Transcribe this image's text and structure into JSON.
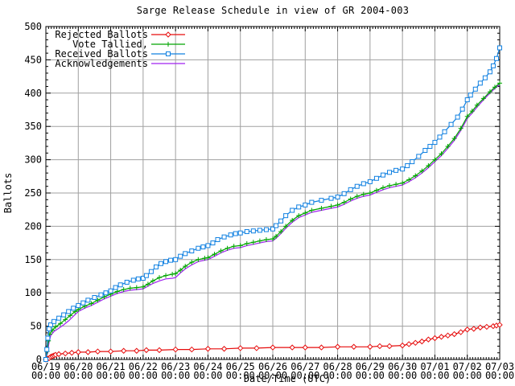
{
  "title": "Sarge Release Schedule in view of GR 2004-003",
  "y_axis_label": "Ballots",
  "x_axis_label": "Date/Time (UTC)",
  "colors": {
    "rejected": "#e60c0c",
    "tallied": "#00a400",
    "received": "#1080e1",
    "acknowledgements": "#a020f0",
    "grid": "#a0a0a0",
    "axis": "#000000",
    "background": "#ffffff"
  },
  "chart_data": {
    "type": "line",
    "title": "Sarge Release Schedule in view of GR 2004-003",
    "xlabel": "Date/Time (UTC)",
    "ylabel": "Ballots",
    "ylim": [
      0,
      500
    ],
    "y_tick_values": [
      0,
      50,
      100,
      150,
      200,
      250,
      300,
      350,
      400,
      450,
      500
    ],
    "y_minor_step": 10,
    "x_days": 14,
    "x_minor_per_day": 12,
    "x_tick_dates": [
      "06/19",
      "06/20",
      "06/21",
      "06/22",
      "06/23",
      "06/24",
      "06/25",
      "06/26",
      "06/27",
      "06/28",
      "06/29",
      "06/30",
      "07/01",
      "07/02",
      "07/03"
    ],
    "x_tick_sub": "00:00",
    "grid": true,
    "legend_position": "top-left",
    "series": [
      {
        "name": "Rejected Ballots",
        "slug": "rejected-ballots",
        "color": "#e60c0c",
        "marker": "diamond",
        "points": [
          [
            0,
            0
          ],
          [
            0.05,
            1
          ],
          [
            0.1,
            2
          ],
          [
            0.15,
            4
          ],
          [
            0.2,
            5
          ],
          [
            0.25,
            6
          ],
          [
            0.3,
            7
          ],
          [
            0.4,
            8
          ],
          [
            0.6,
            9
          ],
          [
            0.8,
            10
          ],
          [
            1.0,
            11
          ],
          [
            1.3,
            11
          ],
          [
            1.6,
            12
          ],
          [
            2.0,
            12
          ],
          [
            2.4,
            13
          ],
          [
            2.8,
            13
          ],
          [
            3.1,
            14
          ],
          [
            3.5,
            14
          ],
          [
            4.0,
            15
          ],
          [
            4.5,
            15
          ],
          [
            5.0,
            16
          ],
          [
            5.5,
            16
          ],
          [
            6.0,
            17
          ],
          [
            6.5,
            17
          ],
          [
            7.0,
            18
          ],
          [
            7.6,
            18
          ],
          [
            8.0,
            18
          ],
          [
            8.5,
            18
          ],
          [
            9.0,
            19
          ],
          [
            9.5,
            19
          ],
          [
            10.0,
            19
          ],
          [
            10.3,
            20
          ],
          [
            10.6,
            20
          ],
          [
            11.0,
            21
          ],
          [
            11.2,
            23
          ],
          [
            11.4,
            25
          ],
          [
            11.6,
            27
          ],
          [
            11.8,
            30
          ],
          [
            12.0,
            32
          ],
          [
            12.2,
            34
          ],
          [
            12.4,
            36
          ],
          [
            12.6,
            38
          ],
          [
            12.8,
            41
          ],
          [
            13.0,
            45
          ],
          [
            13.2,
            46
          ],
          [
            13.4,
            48
          ],
          [
            13.6,
            49
          ],
          [
            13.8,
            50
          ],
          [
            13.9,
            51
          ],
          [
            14.0,
            52
          ]
        ]
      },
      {
        "name": "Vote Tallied,",
        "slug": "vote-tallied",
        "color": "#00a400",
        "marker": "plus",
        "points": [
          [
            0,
            0
          ],
          [
            0.04,
            12
          ],
          [
            0.08,
            28
          ],
          [
            0.12,
            38
          ],
          [
            0.2,
            44
          ],
          [
            0.3,
            49
          ],
          [
            0.45,
            54
          ],
          [
            0.6,
            60
          ],
          [
            0.75,
            66
          ],
          [
            0.9,
            72
          ],
          [
            1.0,
            75
          ],
          [
            1.2,
            80
          ],
          [
            1.4,
            84
          ],
          [
            1.6,
            89
          ],
          [
            1.8,
            94
          ],
          [
            2.0,
            98
          ],
          [
            2.2,
            102
          ],
          [
            2.4,
            105
          ],
          [
            2.6,
            107
          ],
          [
            2.8,
            108
          ],
          [
            3.0,
            109
          ],
          [
            3.15,
            113
          ],
          [
            3.3,
            118
          ],
          [
            3.5,
            123
          ],
          [
            3.7,
            126
          ],
          [
            3.9,
            128
          ],
          [
            4.0,
            129
          ],
          [
            4.15,
            134
          ],
          [
            4.3,
            140
          ],
          [
            4.5,
            146
          ],
          [
            4.7,
            150
          ],
          [
            4.9,
            152
          ],
          [
            5.0,
            153
          ],
          [
            5.2,
            158
          ],
          [
            5.4,
            163
          ],
          [
            5.6,
            167
          ],
          [
            5.8,
            170
          ],
          [
            6.0,
            171
          ],
          [
            6.2,
            174
          ],
          [
            6.4,
            176
          ],
          [
            6.6,
            178
          ],
          [
            6.8,
            180
          ],
          [
            7.0,
            181
          ],
          [
            7.1,
            185
          ],
          [
            7.25,
            192
          ],
          [
            7.4,
            200
          ],
          [
            7.6,
            209
          ],
          [
            7.8,
            216
          ],
          [
            8.0,
            220
          ],
          [
            8.2,
            224
          ],
          [
            8.5,
            227
          ],
          [
            8.8,
            230
          ],
          [
            9.0,
            232
          ],
          [
            9.2,
            236
          ],
          [
            9.4,
            241
          ],
          [
            9.6,
            245
          ],
          [
            9.8,
            248
          ],
          [
            10.0,
            250
          ],
          [
            10.2,
            254
          ],
          [
            10.4,
            258
          ],
          [
            10.6,
            261
          ],
          [
            10.8,
            263
          ],
          [
            11.0,
            265
          ],
          [
            11.2,
            270
          ],
          [
            11.4,
            276
          ],
          [
            11.6,
            283
          ],
          [
            11.8,
            291
          ],
          [
            12.0,
            300
          ],
          [
            12.2,
            309
          ],
          [
            12.4,
            320
          ],
          [
            12.6,
            332
          ],
          [
            12.8,
            347
          ],
          [
            13.0,
            365
          ],
          [
            13.15,
            373
          ],
          [
            13.3,
            382
          ],
          [
            13.5,
            392
          ],
          [
            13.7,
            402
          ],
          [
            13.85,
            409
          ],
          [
            14.0,
            415
          ]
        ]
      },
      {
        "name": "Received Ballots",
        "slug": "received-ballots",
        "color": "#1080e1",
        "marker": "square",
        "points": [
          [
            0,
            0
          ],
          [
            0.03,
            15
          ],
          [
            0.06,
            32
          ],
          [
            0.1,
            46
          ],
          [
            0.15,
            52
          ],
          [
            0.25,
            57
          ],
          [
            0.4,
            62
          ],
          [
            0.55,
            67
          ],
          [
            0.7,
            72
          ],
          [
            0.85,
            77
          ],
          [
            1.0,
            81
          ],
          [
            1.15,
            85
          ],
          [
            1.3,
            89
          ],
          [
            1.5,
            93
          ],
          [
            1.7,
            97
          ],
          [
            1.85,
            100
          ],
          [
            2.0,
            103
          ],
          [
            2.15,
            108
          ],
          [
            2.3,
            112
          ],
          [
            2.5,
            116
          ],
          [
            2.7,
            119
          ],
          [
            2.85,
            121
          ],
          [
            3.0,
            122
          ],
          [
            3.1,
            126
          ],
          [
            3.25,
            132
          ],
          [
            3.4,
            139
          ],
          [
            3.55,
            144
          ],
          [
            3.7,
            147
          ],
          [
            3.85,
            149
          ],
          [
            4.0,
            150
          ],
          [
            4.15,
            155
          ],
          [
            4.3,
            159
          ],
          [
            4.5,
            163
          ],
          [
            4.7,
            167
          ],
          [
            4.85,
            169
          ],
          [
            5.0,
            171
          ],
          [
            5.15,
            175
          ],
          [
            5.3,
            180
          ],
          [
            5.5,
            184
          ],
          [
            5.7,
            187
          ],
          [
            5.85,
            189
          ],
          [
            6.0,
            190
          ],
          [
            6.2,
            192
          ],
          [
            6.4,
            193
          ],
          [
            6.6,
            194
          ],
          [
            6.8,
            195
          ],
          [
            7.0,
            196
          ],
          [
            7.1,
            201
          ],
          [
            7.25,
            208
          ],
          [
            7.4,
            216
          ],
          [
            7.6,
            224
          ],
          [
            7.8,
            229
          ],
          [
            8.0,
            232
          ],
          [
            8.2,
            236
          ],
          [
            8.5,
            239
          ],
          [
            8.8,
            242
          ],
          [
            9.0,
            244
          ],
          [
            9.2,
            249
          ],
          [
            9.4,
            255
          ],
          [
            9.6,
            260
          ],
          [
            9.8,
            264
          ],
          [
            10.0,
            267
          ],
          [
            10.2,
            272
          ],
          [
            10.4,
            277
          ],
          [
            10.6,
            281
          ],
          [
            10.8,
            284
          ],
          [
            11.0,
            286
          ],
          [
            11.15,
            291
          ],
          [
            11.3,
            297
          ],
          [
            11.5,
            305
          ],
          [
            11.7,
            314
          ],
          [
            11.85,
            320
          ],
          [
            12.0,
            326
          ],
          [
            12.15,
            334
          ],
          [
            12.3,
            342
          ],
          [
            12.5,
            353
          ],
          [
            12.7,
            364
          ],
          [
            12.85,
            376
          ],
          [
            13.0,
            390
          ],
          [
            13.1,
            397
          ],
          [
            13.25,
            406
          ],
          [
            13.4,
            415
          ],
          [
            13.55,
            423
          ],
          [
            13.7,
            432
          ],
          [
            13.8,
            441
          ],
          [
            13.9,
            452
          ],
          [
            14.0,
            468
          ]
        ]
      },
      {
        "name": "Acknowledgements",
        "slug": "acknowledgements",
        "color": "#a020f0",
        "marker": "none",
        "points": [
          [
            0,
            0
          ],
          [
            0.05,
            10
          ],
          [
            0.1,
            26
          ],
          [
            0.15,
            36
          ],
          [
            0.25,
            42
          ],
          [
            0.4,
            47
          ],
          [
            0.55,
            52
          ],
          [
            0.7,
            58
          ],
          [
            0.85,
            65
          ],
          [
            1.0,
            72
          ],
          [
            1.2,
            77
          ],
          [
            1.4,
            81
          ],
          [
            1.6,
            86
          ],
          [
            1.8,
            91
          ],
          [
            2.0,
            95
          ],
          [
            2.2,
            99
          ],
          [
            2.4,
            102
          ],
          [
            2.6,
            104
          ],
          [
            2.8,
            105
          ],
          [
            3.0,
            106
          ],
          [
            3.15,
            110
          ],
          [
            3.3,
            114
          ],
          [
            3.5,
            118
          ],
          [
            3.7,
            121
          ],
          [
            3.9,
            122
          ],
          [
            4.0,
            123
          ],
          [
            4.15,
            130
          ],
          [
            4.3,
            136
          ],
          [
            4.5,
            142
          ],
          [
            4.7,
            147
          ],
          [
            4.9,
            149
          ],
          [
            5.0,
            150
          ],
          [
            5.2,
            155
          ],
          [
            5.4,
            160
          ],
          [
            5.6,
            164
          ],
          [
            5.8,
            167
          ],
          [
            6.0,
            168
          ],
          [
            6.2,
            171
          ],
          [
            6.4,
            173
          ],
          [
            6.6,
            175
          ],
          [
            6.8,
            177
          ],
          [
            7.0,
            178
          ],
          [
            7.1,
            182
          ],
          [
            7.25,
            189
          ],
          [
            7.4,
            197
          ],
          [
            7.6,
            206
          ],
          [
            7.8,
            213
          ],
          [
            8.0,
            217
          ],
          [
            8.2,
            221
          ],
          [
            8.5,
            224
          ],
          [
            8.8,
            227
          ],
          [
            9.0,
            229
          ],
          [
            9.2,
            233
          ],
          [
            9.4,
            238
          ],
          [
            9.6,
            242
          ],
          [
            9.8,
            245
          ],
          [
            10.0,
            247
          ],
          [
            10.2,
            251
          ],
          [
            10.4,
            255
          ],
          [
            10.6,
            258
          ],
          [
            10.8,
            260
          ],
          [
            11.0,
            262
          ],
          [
            11.2,
            267
          ],
          [
            11.4,
            273
          ],
          [
            11.6,
            280
          ],
          [
            11.8,
            288
          ],
          [
            12.0,
            297
          ],
          [
            12.2,
            306
          ],
          [
            12.4,
            317
          ],
          [
            12.6,
            329
          ],
          [
            12.8,
            344
          ],
          [
            13.0,
            362
          ],
          [
            13.15,
            370
          ],
          [
            13.3,
            379
          ],
          [
            13.5,
            390
          ],
          [
            13.7,
            400
          ],
          [
            13.85,
            407
          ],
          [
            14.0,
            413
          ]
        ]
      }
    ]
  }
}
